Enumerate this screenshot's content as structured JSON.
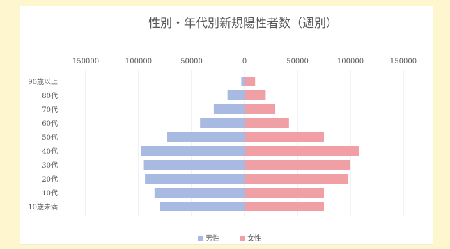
{
  "chart_data": {
    "type": "bar",
    "orientation": "horizontal-population-pyramid",
    "title": "性別・年代別新規陽性者数（週別）",
    "categories": [
      "90歳以上",
      "80代",
      "70代",
      "60代",
      "50代",
      "40代",
      "30代",
      "20代",
      "10代",
      "10歳未満"
    ],
    "series": [
      {
        "name": "男性",
        "color": "#a8b9e2",
        "side": "left",
        "values": [
          3000,
          16000,
          29000,
          42000,
          73000,
          98000,
          95000,
          94000,
          85000,
          80000
        ]
      },
      {
        "name": "女性",
        "color": "#f0a0a5",
        "side": "right",
        "values": [
          10000,
          20000,
          29000,
          42000,
          75000,
          108000,
          100000,
          98000,
          75000,
          75000
        ]
      }
    ],
    "x_ticks": [
      "150000",
      "100000",
      "50000",
      "0",
      "50000",
      "100000",
      "150000"
    ],
    "xlim": [
      -150000,
      150000
    ],
    "grid": true,
    "legend_position": "bottom"
  }
}
